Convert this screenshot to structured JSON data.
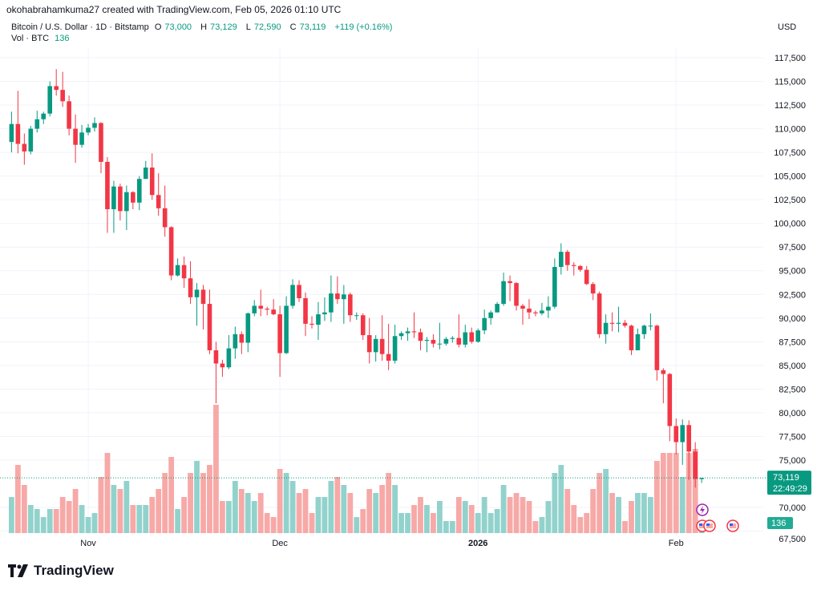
{
  "header": {
    "attribution": "okohabrahamkuma27 created with TradingView.com, Feb 05, 2026 01:10 UTC",
    "symbol": "Bitcoin / U.S. Dollar · 1D · Bitstamp",
    "open_label": "O",
    "open": "73,000",
    "high_label": "H",
    "high": "73,129",
    "low_label": "L",
    "low": "72,590",
    "close_label": "C",
    "close": "73,119",
    "change": "+119 (+0.16%)",
    "vol_label": "Vol · BTC",
    "vol_value": "136",
    "currency": "USD"
  },
  "brand": {
    "name": "TradingView",
    "icon": "tradingview-logo-icon"
  },
  "colors": {
    "up": "#089981",
    "down": "#f23645",
    "vol_up": "#92d2cc",
    "vol_down": "#f7a9a7",
    "grid": "#f0f3fa"
  },
  "chart_data": {
    "type": "candlestick",
    "title": "Bitcoin / U.S. Dollar · 1D · Bitstamp",
    "ylim": [
      67500,
      118500
    ],
    "grid": true,
    "y_ticks": [
      "117,500",
      "115,000",
      "112,500",
      "110,000",
      "107,500",
      "105,000",
      "102,500",
      "100,000",
      "97,500",
      "95,000",
      "92,500",
      "90,000",
      "87,500",
      "85,000",
      "82,500",
      "80,000",
      "77,500",
      "75,000",
      "70,000",
      "67,500"
    ],
    "y_tick_values": [
      117500,
      115000,
      112500,
      110000,
      107500,
      105000,
      102500,
      100000,
      97500,
      95000,
      92500,
      90000,
      87500,
      85000,
      82500,
      80000,
      77500,
      75000,
      70000,
      67500
    ],
    "x_ticks": [
      {
        "label": "Nov",
        "date": "Nov 1"
      },
      {
        "label": "Dec",
        "date": "Dec 1"
      },
      {
        "label": "2026",
        "date": "Jan 1"
      },
      {
        "label": "Feb",
        "date": "Feb 1"
      }
    ],
    "last_price": {
      "value": "73,119",
      "countdown": "22:49:29"
    },
    "last_volume": "136",
    "columns": [
      "date",
      "open",
      "high",
      "low",
      "close",
      "volume"
    ],
    "candles": [
      [
        "Oct 20",
        108600,
        111800,
        107500,
        110500,
        1800
      ],
      [
        "Oct 21",
        110500,
        114000,
        107400,
        108400,
        3400
      ],
      [
        "Oct 22",
        108400,
        109500,
        106200,
        107600,
        2400
      ],
      [
        "Oct 23",
        107600,
        110300,
        107300,
        110000,
        1400
      ],
      [
        "Oct 24",
        110000,
        111900,
        109600,
        111000,
        1200
      ],
      [
        "Oct 25",
        111000,
        111800,
        110500,
        111600,
        800
      ],
      [
        "Oct 26",
        111600,
        115000,
        111300,
        114500,
        1200
      ],
      [
        "Oct 27",
        114500,
        116300,
        113500,
        114100,
        1200
      ],
      [
        "Oct 28",
        114100,
        116000,
        112300,
        112900,
        1800
      ],
      [
        "Oct 29",
        112900,
        113500,
        109300,
        110000,
        1600
      ],
      [
        "Oct 30",
        110000,
        111500,
        106400,
        108300,
        2200
      ],
      [
        "Oct 31",
        108300,
        110400,
        108000,
        109600,
        1400
      ],
      [
        "Nov 1",
        109600,
        110500,
        109300,
        110100,
        800
      ],
      [
        "Nov 2",
        110100,
        111200,
        109700,
        110600,
        1000
      ],
      [
        "Nov 3",
        110600,
        110700,
        105300,
        106500,
        2800
      ],
      [
        "Nov 4",
        106500,
        107000,
        99000,
        101500,
        4000
      ],
      [
        "Nov 5",
        101500,
        104500,
        99000,
        103900,
        2400
      ],
      [
        "Nov 6",
        103900,
        104200,
        100300,
        101300,
        2200
      ],
      [
        "Nov 7",
        101300,
        104000,
        99300,
        103300,
        2600
      ],
      [
        "Nov 8",
        103300,
        103400,
        101500,
        102200,
        1400
      ],
      [
        "Nov 9",
        102200,
        105000,
        101400,
        104700,
        1400
      ],
      [
        "Nov 10",
        104700,
        106600,
        104700,
        105900,
        1400
      ],
      [
        "Nov 11",
        105900,
        107400,
        102500,
        103000,
        1800
      ],
      [
        "Nov 12",
        103000,
        105300,
        100800,
        101600,
        2200
      ],
      [
        "Nov 13",
        101600,
        104000,
        98600,
        99600,
        3000
      ],
      [
        "Nov 14",
        99600,
        99700,
        94000,
        94500,
        3800
      ],
      [
        "Nov 15",
        94500,
        96300,
        94400,
        95600,
        1200
      ],
      [
        "Nov 16",
        95600,
        96500,
        93200,
        94200,
        1800
      ],
      [
        "Nov 17",
        94200,
        96000,
        91500,
        92200,
        3000
      ],
      [
        "Nov 18",
        92200,
        93700,
        89200,
        93000,
        3600
      ],
      [
        "Nov 19",
        93000,
        93500,
        88800,
        91500,
        3000
      ],
      [
        "Nov 20",
        91500,
        93000,
        86200,
        86600,
        3400
      ],
      [
        "Nov 21",
        86600,
        87500,
        81000,
        85200,
        6400
      ],
      [
        "Nov 22",
        85200,
        85600,
        83800,
        84800,
        1600
      ],
      [
        "Nov 23",
        84800,
        88200,
        84600,
        86800,
        1600
      ],
      [
        "Nov 24",
        86800,
        89100,
        85700,
        88300,
        2600
      ],
      [
        "Nov 25",
        88300,
        88600,
        86200,
        87400,
        2200
      ],
      [
        "Nov 26",
        87400,
        90600,
        86400,
        90500,
        2000
      ],
      [
        "Nov 27",
        90500,
        91900,
        90200,
        91300,
        1600
      ],
      [
        "Nov 28",
        91300,
        93000,
        90200,
        91000,
        2000
      ],
      [
        "Nov 29",
        91000,
        91200,
        90300,
        90900,
        1000
      ],
      [
        "Nov 30",
        90900,
        92000,
        90300,
        90400,
        800
      ],
      [
        "Dec 1",
        90400,
        91300,
        83800,
        86300,
        3200
      ],
      [
        "Dec 2",
        86300,
        92300,
        86200,
        91300,
        3000
      ],
      [
        "Dec 3",
        91300,
        94100,
        91000,
        93500,
        2600
      ],
      [
        "Dec 4",
        93500,
        94000,
        91700,
        92100,
        2000
      ],
      [
        "Dec 5",
        92100,
        92700,
        88100,
        89400,
        2200
      ],
      [
        "Dec 6",
        89400,
        90200,
        88900,
        89300,
        1000
      ],
      [
        "Dec 7",
        89300,
        91700,
        87700,
        90400,
        1800
      ],
      [
        "Dec 8",
        90400,
        92200,
        89700,
        90600,
        1800
      ],
      [
        "Dec 9",
        90600,
        94500,
        89600,
        92600,
        2600
      ],
      [
        "Dec 10",
        92600,
        94400,
        91500,
        92000,
        2800
      ],
      [
        "Dec 11",
        92000,
        93500,
        89400,
        92500,
        2400
      ],
      [
        "Dec 12",
        92500,
        92700,
        89600,
        90300,
        2000
      ],
      [
        "Dec 13",
        90300,
        90600,
        89800,
        90300,
        800
      ],
      [
        "Dec 14",
        90300,
        90500,
        87700,
        88200,
        1200
      ],
      [
        "Dec 15",
        88200,
        90000,
        85200,
        86400,
        2200
      ],
      [
        "Dec 16",
        86400,
        88200,
        85400,
        87800,
        2000
      ],
      [
        "Dec 17",
        87800,
        90300,
        85500,
        86200,
        2400
      ],
      [
        "Dec 18",
        86200,
        89400,
        84500,
        85500,
        3000
      ],
      [
        "Dec 19",
        85500,
        89300,
        85200,
        88100,
        2400
      ],
      [
        "Dec 20",
        88100,
        88600,
        87700,
        88400,
        1000
      ],
      [
        "Dec 21",
        88400,
        89000,
        87600,
        88600,
        1000
      ],
      [
        "Dec 22",
        88600,
        90600,
        87900,
        88500,
        1400
      ],
      [
        "Dec 23",
        88500,
        88900,
        86600,
        87600,
        1800
      ],
      [
        "Dec 24",
        87600,
        88000,
        86400,
        87700,
        1400
      ],
      [
        "Dec 25",
        87700,
        88300,
        86900,
        87300,
        1000
      ],
      [
        "Dec 26",
        87300,
        89500,
        86700,
        87300,
        1600
      ],
      [
        "Dec 27",
        87300,
        88000,
        87100,
        87800,
        600
      ],
      [
        "Dec 28",
        87800,
        88100,
        87400,
        87900,
        600
      ],
      [
        "Dec 29",
        87900,
        90400,
        86900,
        87200,
        1800
      ],
      [
        "Dec 30",
        87200,
        89300,
        86900,
        88500,
        1600
      ],
      [
        "Dec 31",
        88500,
        89000,
        87300,
        87500,
        1400
      ],
      [
        "Jan 1",
        87500,
        88900,
        87400,
        88700,
        1000
      ],
      [
        "Jan 2",
        88700,
        90900,
        88300,
        90000,
        1800
      ],
      [
        "Jan 3",
        90000,
        90800,
        89300,
        90600,
        1000
      ],
      [
        "Jan 4",
        90600,
        91700,
        90600,
        91500,
        1200
      ],
      [
        "Jan 5",
        91500,
        94800,
        91300,
        93900,
        2400
      ],
      [
        "Jan 6",
        93900,
        94500,
        91800,
        93700,
        1800
      ],
      [
        "Jan 7",
        93700,
        93800,
        90800,
        91300,
        2000
      ],
      [
        "Jan 8",
        91300,
        91500,
        89300,
        91000,
        1800
      ],
      [
        "Jan 9",
        91000,
        92000,
        89900,
        90600,
        1600
      ],
      [
        "Jan 10",
        90600,
        90800,
        90200,
        90500,
        600
      ],
      [
        "Jan 11",
        90500,
        91600,
        90300,
        90800,
        800
      ],
      [
        "Jan 12",
        90800,
        92300,
        90000,
        91200,
        1600
      ],
      [
        "Jan 13",
        91200,
        96300,
        91000,
        95400,
        3000
      ],
      [
        "Jan 14",
        95400,
        97900,
        94600,
        97000,
        3400
      ],
      [
        "Jan 15",
        97000,
        97200,
        95000,
        95600,
        2200
      ],
      [
        "Jan 16",
        95600,
        95900,
        94500,
        95500,
        1400
      ],
      [
        "Jan 17",
        95500,
        95600,
        94900,
        95100,
        800
      ],
      [
        "Jan 18",
        95100,
        95500,
        93500,
        93600,
        1000
      ],
      [
        "Jan 19",
        93600,
        93800,
        91900,
        92600,
        2200
      ],
      [
        "Jan 20",
        92600,
        92800,
        87900,
        88300,
        3000
      ],
      [
        "Jan 21",
        88300,
        90400,
        87300,
        89500,
        3200
      ],
      [
        "Jan 22",
        89500,
        90600,
        88600,
        89400,
        2000
      ],
      [
        "Jan 23",
        89400,
        91200,
        88500,
        89500,
        1800
      ],
      [
        "Jan 24",
        89500,
        89800,
        89000,
        89200,
        600
      ],
      [
        "Jan 25",
        89200,
        89300,
        86100,
        86600,
        1600
      ],
      [
        "Jan 26",
        86600,
        88900,
        86600,
        88300,
        2000
      ],
      [
        "Jan 27",
        88300,
        89300,
        87800,
        89200,
        2000
      ],
      [
        "Jan 28",
        89200,
        90500,
        88700,
        89200,
        1800
      ],
      [
        "Jan 29",
        89200,
        89300,
        83400,
        84500,
        3600
      ],
      [
        "Jan 30",
        84500,
        84700,
        81000,
        84100,
        4000
      ],
      [
        "Jan 31",
        84100,
        84200,
        77000,
        78600,
        4000
      ],
      [
        "Feb 1",
        78600,
        79400,
        75600,
        76900,
        4000
      ],
      [
        "Feb 2",
        76900,
        79300,
        74500,
        78700,
        2800
      ],
      [
        "Feb 3",
        78700,
        79200,
        72900,
        75900,
        4000
      ],
      [
        "Feb 4",
        75900,
        76900,
        72100,
        73000,
        4200
      ],
      [
        "Feb 5",
        73000,
        73129,
        72590,
        73119,
        136
      ]
    ]
  }
}
